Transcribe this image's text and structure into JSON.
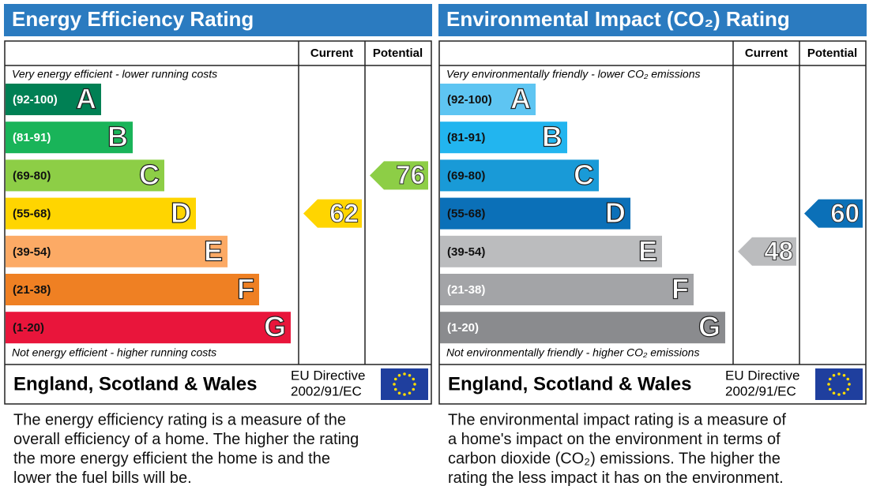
{
  "panels": [
    {
      "title": "Energy Efficiency Rating",
      "headers": {
        "current": "Current",
        "potential": "Potential"
      },
      "top_note": "Very energy efficient - lower running costs",
      "bottom_note": "Not energy efficient - higher running costs",
      "bands": [
        {
          "range": "(92-100)",
          "letter": "A",
          "color": "#008054",
          "label_color": "#ffffff"
        },
        {
          "range": "(81-91)",
          "letter": "B",
          "color": "#19b459",
          "label_color": "#ffffff"
        },
        {
          "range": "(69-80)",
          "letter": "C",
          "color": "#8dce46",
          "label_color": "#111111"
        },
        {
          "range": "(55-68)",
          "letter": "D",
          "color": "#ffd500",
          "label_color": "#111111"
        },
        {
          "range": "(39-54)",
          "letter": "E",
          "color": "#fcaa65",
          "label_color": "#111111"
        },
        {
          "range": "(21-38)",
          "letter": "F",
          "color": "#ef8023",
          "label_color": "#111111"
        },
        {
          "range": "(1-20)",
          "letter": "G",
          "color": "#e9153b",
          "label_color": "#111111"
        }
      ],
      "current": 62,
      "potential": 76,
      "footer": {
        "region": "England, Scotland & Wales",
        "directive": [
          "EU Directive",
          "2002/91/EC"
        ]
      },
      "description": [
        "The energy efficiency rating is a measure of the",
        "overall efficiency of a home. The higher the rating",
        "the more energy efficient the home is and the",
        "lower the fuel bills will be."
      ]
    },
    {
      "title": "Environmental Impact (CO₂) Rating",
      "headers": {
        "current": "Current",
        "potential": "Potential"
      },
      "top_note": "Very environmentally friendly - lower CO₂ emissions",
      "bottom_note": "Not environmentally friendly - higher CO₂ emissions",
      "bands": [
        {
          "range": "(92-100)",
          "letter": "A",
          "color": "#5ec5f2",
          "label_color": "#111111"
        },
        {
          "range": "(81-91)",
          "letter": "B",
          "color": "#22b5ef",
          "label_color": "#111111"
        },
        {
          "range": "(69-80)",
          "letter": "C",
          "color": "#199ad7",
          "label_color": "#111111"
        },
        {
          "range": "(55-68)",
          "letter": "D",
          "color": "#0b70b8",
          "label_color": "#111111"
        },
        {
          "range": "(39-54)",
          "letter": "E",
          "color": "#bbbcbe",
          "label_color": "#111111"
        },
        {
          "range": "(21-38)",
          "letter": "F",
          "color": "#a3a4a7",
          "label_color": "#ffffff"
        },
        {
          "range": "(1-20)",
          "letter": "G",
          "color": "#8a8b8e",
          "label_color": "#ffffff"
        }
      ],
      "current": 48,
      "potential": 60,
      "footer": {
        "region": "England, Scotland & Wales",
        "directive": [
          "EU Directive",
          "2002/91/EC"
        ]
      },
      "description": [
        "The environmental impact rating is a measure of",
        "a home's impact on the environment in terms of",
        "carbon dioxide (CO₂) emissions. The higher the",
        "rating the less impact it has on the environment."
      ]
    }
  ]
}
